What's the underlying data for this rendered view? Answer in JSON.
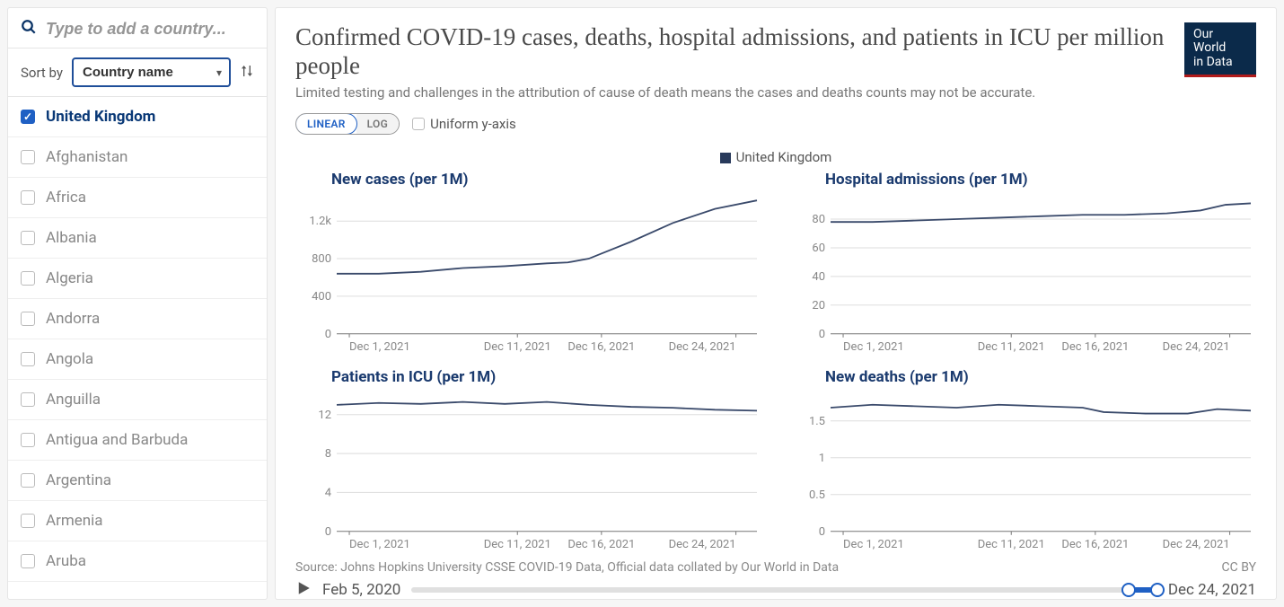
{
  "sidebar": {
    "search_placeholder": "Type to add a country...",
    "sort_label": "Sort by",
    "sort_select_value": "Country name",
    "selected_country": "United Kingdom",
    "countries": [
      {
        "label": "United Kingdom",
        "checked": true
      },
      {
        "label": "Afghanistan",
        "checked": false
      },
      {
        "label": "Africa",
        "checked": false
      },
      {
        "label": "Albania",
        "checked": false
      },
      {
        "label": "Algeria",
        "checked": false
      },
      {
        "label": "Andorra",
        "checked": false
      },
      {
        "label": "Angola",
        "checked": false
      },
      {
        "label": "Anguilla",
        "checked": false
      },
      {
        "label": "Antigua and Barbuda",
        "checked": false
      },
      {
        "label": "Argentina",
        "checked": false
      },
      {
        "label": "Armenia",
        "checked": false
      },
      {
        "label": "Aruba",
        "checked": false
      }
    ]
  },
  "header": {
    "title": "Confirmed COVID-19 cases, deaths, hospital admissions, and patients in ICU per million people",
    "subtitle": "Limited testing and challenges in the attribution of cause of death means the cases and deaths counts may not be accurate.",
    "logo_line1": "Our World",
    "logo_line2": "in Data"
  },
  "controls": {
    "scale_linear": "LINEAR",
    "scale_log": "LOG",
    "uniform_label": "Uniform y-axis"
  },
  "legend": {
    "label": "United Kingdom",
    "color": "#283a5b"
  },
  "x_axis": {
    "ticks": [
      "Dec 1, 2021",
      "Dec 11, 2021",
      "Dec 16, 2021",
      "Dec 24, 2021"
    ],
    "tick_pos": [
      0.03,
      0.43,
      0.63,
      0.95
    ]
  },
  "line_color": "#3a4a6b",
  "grid_color": "#dddddd",
  "axis_text_color": "#888888",
  "panels": [
    {
      "title": "New cases (per 1M)",
      "y_ticks": [
        {
          "v": 0,
          "l": "0"
        },
        {
          "v": 400,
          "l": "400"
        },
        {
          "v": 800,
          "l": "800"
        },
        {
          "v": 1200,
          "l": "1.2k"
        }
      ],
      "y_max": 1450,
      "data": [
        [
          0,
          640
        ],
        [
          0.1,
          640
        ],
        [
          0.2,
          660
        ],
        [
          0.3,
          700
        ],
        [
          0.4,
          720
        ],
        [
          0.5,
          750
        ],
        [
          0.55,
          760
        ],
        [
          0.6,
          800
        ],
        [
          0.7,
          980
        ],
        [
          0.8,
          1180
        ],
        [
          0.9,
          1330
        ],
        [
          1.0,
          1420
        ]
      ]
    },
    {
      "title": "Hospital admissions (per 1M)",
      "y_ticks": [
        {
          "v": 0,
          "l": "0"
        },
        {
          "v": 20,
          "l": "20"
        },
        {
          "v": 40,
          "l": "40"
        },
        {
          "v": 60,
          "l": "60"
        },
        {
          "v": 80,
          "l": "80"
        }
      ],
      "y_max": 95,
      "data": [
        [
          0,
          78
        ],
        [
          0.1,
          78
        ],
        [
          0.2,
          79
        ],
        [
          0.3,
          80
        ],
        [
          0.4,
          81
        ],
        [
          0.5,
          82
        ],
        [
          0.6,
          83
        ],
        [
          0.7,
          83
        ],
        [
          0.8,
          84
        ],
        [
          0.88,
          86
        ],
        [
          0.94,
          90
        ],
        [
          1.0,
          91
        ]
      ]
    },
    {
      "title": "Patients in ICU (per 1M)",
      "y_ticks": [
        {
          "v": 0,
          "l": "0"
        },
        {
          "v": 4,
          "l": "4"
        },
        {
          "v": 8,
          "l": "8"
        },
        {
          "v": 12,
          "l": "12"
        }
      ],
      "y_max": 14,
      "data": [
        [
          0,
          13.0
        ],
        [
          0.1,
          13.2
        ],
        [
          0.2,
          13.1
        ],
        [
          0.3,
          13.3
        ],
        [
          0.4,
          13.1
        ],
        [
          0.5,
          13.3
        ],
        [
          0.6,
          13.0
        ],
        [
          0.7,
          12.8
        ],
        [
          0.8,
          12.7
        ],
        [
          0.9,
          12.5
        ],
        [
          1.0,
          12.4
        ]
      ]
    },
    {
      "title": "New deaths (per 1M)",
      "y_ticks": [
        {
          "v": 0,
          "l": "0"
        },
        {
          "v": 0.5,
          "l": "0.5"
        },
        {
          "v": 1,
          "l": "1"
        },
        {
          "v": 1.5,
          "l": "1.5"
        }
      ],
      "y_max": 1.85,
      "data": [
        [
          0,
          1.68
        ],
        [
          0.1,
          1.72
        ],
        [
          0.2,
          1.7
        ],
        [
          0.3,
          1.68
        ],
        [
          0.4,
          1.72
        ],
        [
          0.5,
          1.7
        ],
        [
          0.6,
          1.68
        ],
        [
          0.65,
          1.62
        ],
        [
          0.75,
          1.6
        ],
        [
          0.85,
          1.6
        ],
        [
          0.92,
          1.66
        ],
        [
          1.0,
          1.64
        ]
      ]
    }
  ],
  "footer": {
    "source": "Source: Johns Hopkins University CSSE COVID-19 Data, Official data collated by Our World in Data",
    "license": "CC BY"
  },
  "timeline": {
    "start_label": "Feb 5, 2020",
    "end_label": "Dec 24, 2021",
    "handle_start_pct": 96.2,
    "handle_end_pct": 100
  }
}
